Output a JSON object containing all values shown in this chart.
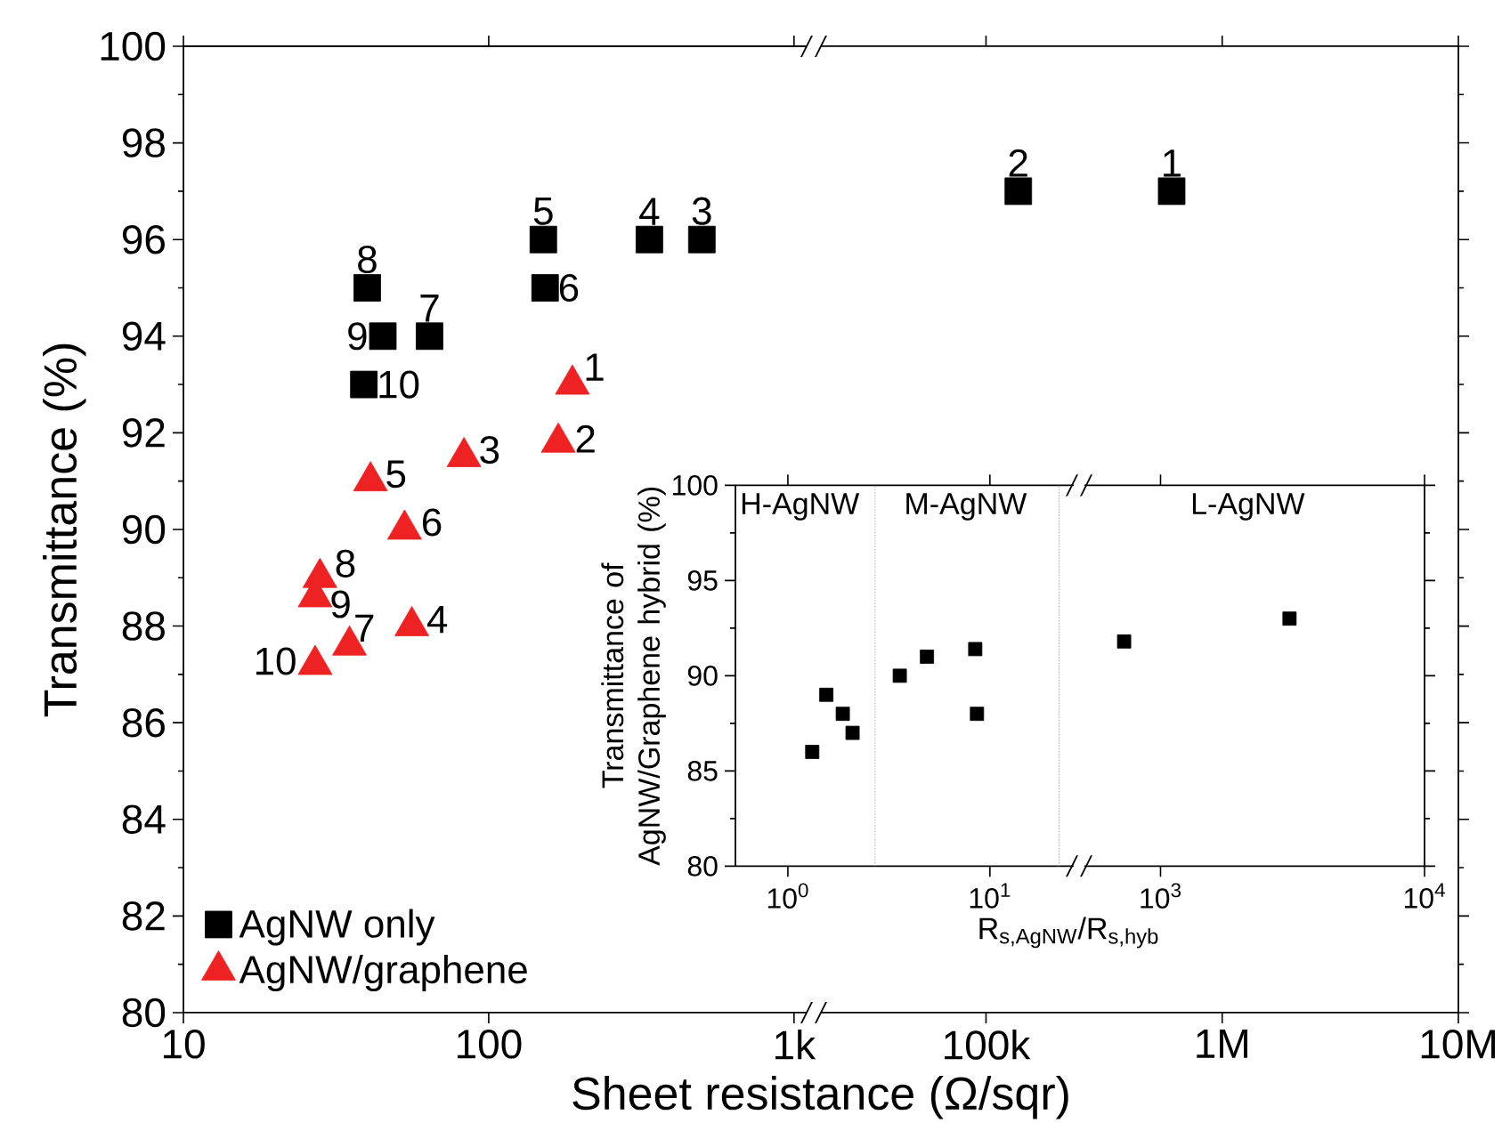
{
  "chart_data": [
    {
      "type": "scatter",
      "log": "x",
      "xlabel": "Sheet resistance (Ω/sqr)",
      "ylabel": "Transmittance (%)",
      "legend": "bottom left",
      "xlim": [
        10,
        1100
      ],
      "ylim": [
        80,
        100
      ],
      "xticks": [
        10,
        100,
        {
          "value": 1000,
          "label": "1k"
        }
      ],
      "yticks": [
        80,
        82,
        84,
        86,
        88,
        90,
        92,
        94,
        96,
        98,
        100
      ],
      "series": [
        {
          "name": "AgNW only",
          "color": "#000000",
          "marker": "square",
          "x": [
            499,
            336,
            151,
            153,
            64,
            40,
            45,
            39
          ],
          "values": [
            96,
            96,
            96,
            95,
            94,
            95,
            94,
            93
          ]
        },
        {
          "name": "AgNW/graphene",
          "color": "#ee2222",
          "marker": "triangle",
          "x": [
            188,
            169,
            83,
            56,
            41,
            53,
            35,
            28,
            27,
            27
          ],
          "values": [
            93,
            91.8,
            91.5,
            88,
            91,
            90,
            87.6,
            89,
            88.6,
            87.2
          ]
        }
      ],
      "annotations": [
        {
          "text": "3",
          "x": 499,
          "y": 96
        },
        {
          "text": "4",
          "x": 336,
          "y": 96
        },
        {
          "text": "5",
          "x": 151,
          "y": 96
        },
        {
          "text": "6",
          "x": 153,
          "y": 95
        },
        {
          "text": "7",
          "x": 64,
          "y": 94
        },
        {
          "text": "8",
          "x": 40,
          "y": 95
        },
        {
          "text": "9",
          "x": 45,
          "y": 94
        },
        {
          "text": "10",
          "x": 39,
          "y": 93
        },
        {
          "text": "1",
          "x": 188,
          "y": 93
        },
        {
          "text": "2",
          "x": 169,
          "y": 91.8
        },
        {
          "text": "3",
          "x": 83,
          "y": 91.5
        },
        {
          "text": "4",
          "x": 56,
          "y": 88
        },
        {
          "text": "5",
          "x": 41,
          "y": 91
        },
        {
          "text": "6",
          "x": 53,
          "y": 90
        },
        {
          "text": "7",
          "x": 35,
          "y": 87.6
        },
        {
          "text": "8",
          "x": 28,
          "y": 89
        },
        {
          "text": "9",
          "x": 27,
          "y": 88.6
        },
        {
          "text": "10",
          "x": 27,
          "y": 87.2
        }
      ]
    },
    {
      "type": "scatter",
      "log": "x",
      "tick_labels": "x",
      "xlim": [
        20000,
        10000000
      ],
      "ylim": [
        80,
        100
      ],
      "xticks": [
        {
          "value": 100000,
          "label": "100k"
        },
        {
          "value": 1000000,
          "label": "1M"
        },
        {
          "value": 10000000,
          "label": "10M"
        }
      ],
      "yticks": [
        80,
        82,
        84,
        86,
        88,
        90,
        92,
        94,
        96,
        98,
        100
      ],
      "series": [
        {
          "color": "#000000",
          "marker": "square",
          "x": [
            137000,
            611000
          ],
          "values": [
            97,
            97
          ]
        }
      ],
      "annotations": [
        {
          "text": "2",
          "x": 137000,
          "y": 97
        },
        {
          "text": "1",
          "x": 611000,
          "y": 97
        }
      ]
    },
    {
      "type": "scatter",
      "log": "x",
      "xlabel": "R$_{s,AgNW}$/R$_{s,hyb}$",
      "ylabel": "Transmittance of AgNW/Graphene hybrid (%)",
      "xlim": [
        0.55,
        26
      ],
      "ylim": [
        80,
        100
      ],
      "xticks": [
        {
          "value": 1,
          "label": "10$^{0}$"
        },
        {
          "value": 10,
          "label": "10$^{1}$"
        }
      ],
      "yticks": [
        80,
        85,
        90,
        95,
        100
      ],
      "series": [
        {
          "color": "#000000",
          "marker": "square",
          "x": [
            1.32,
            1.55,
            1.87,
            2.09,
            3.58,
            4.88,
            8.46,
            8.63
          ],
          "values": [
            86,
            89,
            88,
            87,
            90,
            91,
            91.4,
            88
          ]
        }
      ],
      "ref_lines": [
        {
          "axis": "x",
          "value": 2.7,
          "color": "#aaaaaa",
          "line_style": "dotted"
        },
        {
          "axis": "x",
          "value": 22,
          "color": "#aaaaaa",
          "line_style": "dotted"
        }
      ],
      "annotations": [
        "H-AgNW",
        "M-AgNW"
      ]
    },
    {
      "type": "scatter",
      "log": "x",
      "tick_labels": "x",
      "xlim": [
        515,
        10000
      ],
      "ylim": [
        80,
        100
      ],
      "xticks": [
        {
          "value": 1000,
          "label": "10$^{3}$"
        },
        {
          "value": 10000,
          "label": "10$^{4}$"
        }
      ],
      "yticks": [
        80,
        85,
        90,
        95,
        100
      ],
      "series": [
        {
          "color": "#000000",
          "marker": "square",
          "x": [
            728,
            3080
          ],
          "values": [
            91.8,
            93
          ]
        }
      ],
      "annotations": [
        "L-AgNW"
      ]
    }
  ]
}
